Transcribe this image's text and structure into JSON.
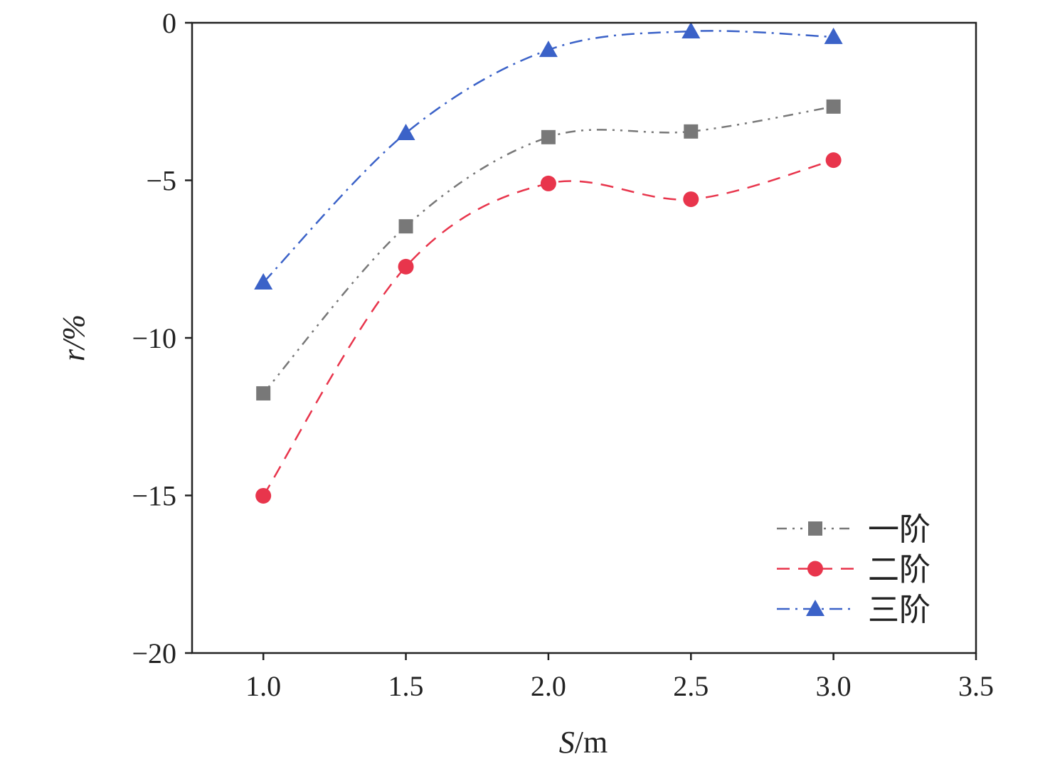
{
  "chart_data": {
    "type": "line",
    "title": "",
    "xlabel": "S/m",
    "xlabel_italic_part": "S",
    "xlabel_rest": "/m",
    "ylabel": "r/%",
    "ylabel_italic_part": "r",
    "ylabel_rest": "/%",
    "xlim": [
      0.75,
      3.5
    ],
    "ylim": [
      -20,
      0
    ],
    "xticks": [
      1.0,
      1.5,
      2.0,
      2.5,
      3.0,
      3.5
    ],
    "xtick_labels": [
      "1.0",
      "1.5",
      "2.0",
      "2.5",
      "3.0",
      "3.5"
    ],
    "yticks": [
      0,
      -5,
      -10,
      -15,
      -20
    ],
    "ytick_labels": [
      "0",
      "−5",
      "−10",
      "−15",
      "−20"
    ],
    "grid": false,
    "legend_position": "bottom-right",
    "x": [
      1.0,
      1.5,
      2.0,
      2.5,
      3.0
    ],
    "series": [
      {
        "name": "一阶",
        "marker": "square",
        "color": "#787878",
        "dash": "14,8,3,8,3,8",
        "values": [
          -11.76,
          -6.46,
          -3.63,
          -3.45,
          -2.66
        ]
      },
      {
        "name": "二阶",
        "marker": "circle",
        "color": "#e8354c",
        "dash": "18,12",
        "values": [
          -15.01,
          -7.74,
          -5.1,
          -5.6,
          -4.36
        ]
      },
      {
        "name": "三阶",
        "marker": "triangle",
        "color": "#3b62c8",
        "dash": "18,8,3,8",
        "values": [
          -8.24,
          -3.5,
          -0.86,
          -0.27,
          -0.45
        ]
      }
    ]
  }
}
